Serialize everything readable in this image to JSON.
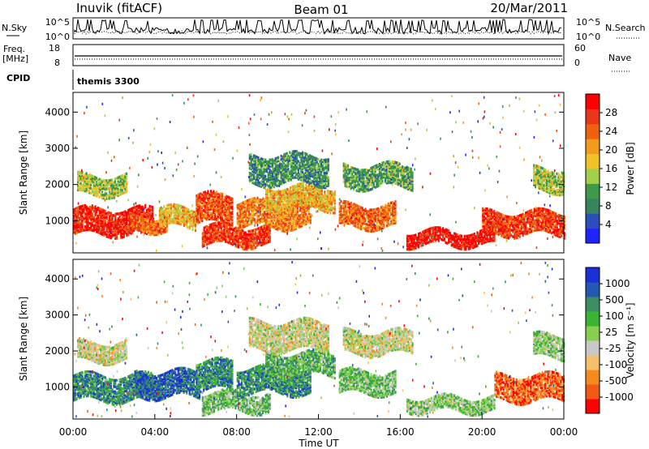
{
  "header": {
    "station": "Inuvik (fitACF)",
    "beam": "Beam 01",
    "date": "20/Mar/2011"
  },
  "aux_panels": {
    "nsky_label": "N.Sky",
    "nsearch_label": "N.Search",
    "nsky_ticks": [
      "10^5",
      "10^0"
    ],
    "nsearch_ticks": [
      "10^5",
      "10^0"
    ],
    "freq_label": "Freq.",
    "freq_unit": "[MHz]",
    "freq_ticks": [
      "18",
      "8"
    ],
    "nave_label": "Nave",
    "nave_ticks": [
      "60",
      "0"
    ],
    "cpid_label": "CPID",
    "cpid_value": "themis 3300"
  },
  "colors": {
    "power": [
      "#1f23ff",
      "#2a4fb8",
      "#37855f",
      "#3d9a48",
      "#9fd24a",
      "#f1c12a",
      "#f39b1c",
      "#f06010",
      "#e8381a",
      "#ff0000"
    ],
    "velocity": [
      "#ff0000",
      "#f05a14",
      "#f58b1e",
      "#f6c06a",
      "#c8c8c8",
      "#87cf50",
      "#3db431",
      "#3b8f63",
      "#2458b5",
      "#1a2fd8"
    ]
  },
  "chart_data": [
    {
      "type": "heatmap",
      "name": "power",
      "ylabel": "Slant Range [km]",
      "ylim": [
        200,
        4500
      ],
      "yticks": [
        1000,
        2000,
        3000,
        4000
      ],
      "colorbar": {
        "label": "Power [dB]",
        "ticks": [
          "28",
          "24",
          "20",
          "16",
          "12",
          "8",
          "4"
        ],
        "range": [
          0,
          30
        ]
      },
      "xlim": [
        0,
        24
      ],
      "bands": [
        {
          "t0": 0.0,
          "t1": 3.9,
          "r0": 600,
          "r1": 1300,
          "level": 0.9
        },
        {
          "t0": 0.2,
          "t1": 2.6,
          "r0": 1700,
          "r1": 2200,
          "level": 0.45
        },
        {
          "t0": 2.8,
          "t1": 4.6,
          "r0": 700,
          "r1": 1100,
          "level": 0.75
        },
        {
          "t0": 4.2,
          "t1": 6.0,
          "r0": 800,
          "r1": 1300,
          "level": 0.6
        },
        {
          "t0": 6.3,
          "t1": 9.6,
          "r0": 300,
          "r1": 800,
          "level": 0.85
        },
        {
          "t0": 6.0,
          "t1": 7.8,
          "r0": 900,
          "r1": 1700,
          "level": 0.8
        },
        {
          "t0": 8.0,
          "t1": 11.6,
          "r0": 800,
          "r1": 1500,
          "level": 0.7
        },
        {
          "t0": 9.4,
          "t1": 12.8,
          "r0": 1300,
          "r1": 1900,
          "level": 0.6
        },
        {
          "t0": 8.6,
          "t1": 12.5,
          "r0": 2000,
          "r1": 2800,
          "level": 0.3
        },
        {
          "t0": 13.0,
          "t1": 15.8,
          "r0": 800,
          "r1": 1400,
          "level": 0.75
        },
        {
          "t0": 13.2,
          "t1": 16.6,
          "r0": 1900,
          "r1": 2500,
          "level": 0.35
        },
        {
          "t0": 16.3,
          "t1": 20.6,
          "r0": 300,
          "r1": 700,
          "level": 0.95
        },
        {
          "t0": 20.0,
          "t1": 24.0,
          "r0": 600,
          "r1": 1200,
          "level": 0.85
        },
        {
          "t0": 22.5,
          "t1": 24.0,
          "r0": 1800,
          "r1": 2400,
          "level": 0.45
        }
      ]
    },
    {
      "type": "heatmap",
      "name": "velocity",
      "ylabel": "Slant Range [km]",
      "xlabel": "Time UT",
      "ylim": [
        200,
        4500
      ],
      "yticks": [
        1000,
        2000,
        3000,
        4000
      ],
      "xticks": [
        "00:00",
        "04:00",
        "08:00",
        "12:00",
        "16:00",
        "20:00",
        "00:00"
      ],
      "colorbar": {
        "label": "Velocity [m s⁻¹]",
        "ticks": [
          "1000",
          "500",
          "100",
          "25",
          "-25",
          "-100",
          "-500",
          "-1000"
        ],
        "range": [
          -1000,
          1000
        ]
      },
      "xlim": [
        0,
        24
      ],
      "bands": [
        {
          "t0": 0.0,
          "t1": 3.9,
          "r0": 600,
          "r1": 1300,
          "level": 0.75
        },
        {
          "t0": 0.2,
          "t1": 2.6,
          "r0": 1700,
          "r1": 2200,
          "level": 0.45
        },
        {
          "t0": 3.0,
          "t1": 6.2,
          "r0": 700,
          "r1": 1400,
          "level": 0.85
        },
        {
          "t0": 6.3,
          "t1": 9.6,
          "r0": 300,
          "r1": 800,
          "level": 0.6
        },
        {
          "t0": 6.0,
          "t1": 7.8,
          "r0": 900,
          "r1": 1700,
          "level": 0.75
        },
        {
          "t0": 8.0,
          "t1": 11.6,
          "r0": 800,
          "r1": 1500,
          "level": 0.75
        },
        {
          "t0": 9.4,
          "t1": 12.8,
          "r0": 1300,
          "r1": 1900,
          "level": 0.65
        },
        {
          "t0": 8.6,
          "t1": 12.5,
          "r0": 2000,
          "r1": 2800,
          "level": 0.45
        },
        {
          "t0": 13.0,
          "t1": 15.8,
          "r0": 800,
          "r1": 1400,
          "level": 0.6
        },
        {
          "t0": 13.2,
          "t1": 16.6,
          "r0": 1900,
          "r1": 2500,
          "level": 0.45
        },
        {
          "t0": 16.3,
          "t1": 20.6,
          "r0": 300,
          "r1": 700,
          "level": 0.55
        },
        {
          "t0": 20.6,
          "t1": 24.0,
          "r0": 600,
          "r1": 1300,
          "level": 0.18
        },
        {
          "t0": 22.5,
          "t1": 24.0,
          "r0": 1800,
          "r1": 2400,
          "level": 0.55
        }
      ]
    }
  ]
}
